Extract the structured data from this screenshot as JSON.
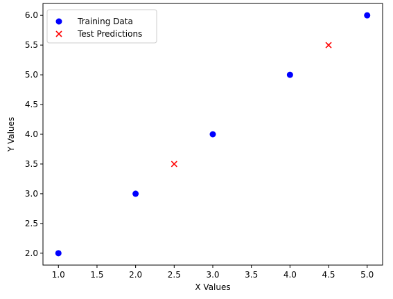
{
  "chart_data": {
    "type": "scatter",
    "title": "",
    "xlabel": "X Values",
    "ylabel": "Y Values",
    "xlim": [
      0.8,
      5.2
    ],
    "ylim": [
      1.8,
      6.2
    ],
    "xticks": [
      1.0,
      1.5,
      2.0,
      2.5,
      3.0,
      3.5,
      4.0,
      4.5,
      5.0
    ],
    "xtick_labels": [
      "1.0",
      "1.5",
      "2.0",
      "2.5",
      "3.0",
      "3.5",
      "4.0",
      "4.5",
      "5.0"
    ],
    "yticks": [
      2.0,
      2.5,
      3.0,
      3.5,
      4.0,
      4.5,
      5.0,
      5.5,
      6.0
    ],
    "ytick_labels": [
      "2.0",
      "2.5",
      "3.0",
      "3.5",
      "4.0",
      "4.5",
      "5.0",
      "5.5",
      "6.0"
    ],
    "grid": false,
    "legend_position": "top-left",
    "series": [
      {
        "name": "Training Data",
        "marker": "circle",
        "color": "#0000ff",
        "x": [
          1,
          2,
          3,
          4,
          5
        ],
        "y": [
          2,
          3,
          4,
          5,
          6
        ]
      },
      {
        "name": "Test Predictions",
        "marker": "x",
        "color": "#ff0000",
        "x": [
          2.5,
          4.5
        ],
        "y": [
          3.5,
          5.5
        ]
      }
    ]
  }
}
